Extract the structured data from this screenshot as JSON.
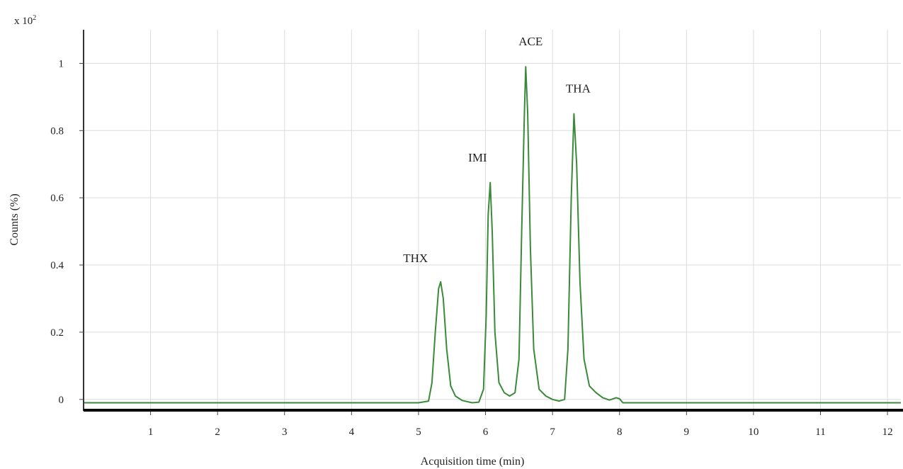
{
  "chart_data": {
    "type": "line",
    "title": "",
    "xlabel": "Acquisition time (min)",
    "ylabel": "Counts (%)",
    "y_multiplier_label": "x 10",
    "y_multiplier_exponent": "2",
    "xlim": [
      0,
      12.2
    ],
    "ylim": [
      -0.03,
      1.1
    ],
    "grid": true,
    "x_ticks": [
      1,
      2,
      3,
      4,
      5,
      6,
      7,
      8,
      9,
      10,
      11,
      12
    ],
    "y_ticks": [
      0,
      0.2,
      0.4,
      0.6,
      0.8,
      1
    ],
    "y_tick_labels": [
      "0",
      "0.2",
      "0.4",
      "0.6",
      "0.8",
      "1"
    ],
    "line_color": "#3a8a3a",
    "baseline": -0.01,
    "peaks": [
      {
        "label": "THX",
        "x": 5.32,
        "y": 0.35
      },
      {
        "label": "IMI",
        "x": 6.07,
        "y": 0.645
      },
      {
        "label": "ACE",
        "x": 6.6,
        "y": 0.99
      },
      {
        "label": "THA",
        "x": 7.32,
        "y": 0.85
      }
    ],
    "series": [
      {
        "x": [
          0.0,
          5.0,
          5.15,
          5.2,
          5.25,
          5.3,
          5.33,
          5.37,
          5.42,
          5.48,
          5.55,
          5.65,
          5.8,
          5.9,
          5.97,
          6.01,
          6.04,
          6.07,
          6.1,
          6.14,
          6.2,
          6.28,
          6.36,
          6.44,
          6.5,
          6.54,
          6.58,
          6.6,
          6.63,
          6.67,
          6.72,
          6.8,
          6.9,
          7.0,
          7.1,
          7.18,
          7.23,
          7.28,
          7.32,
          7.36,
          7.41,
          7.47,
          7.55,
          7.65,
          7.75,
          7.85,
          7.95,
          8.0,
          8.05,
          8.15,
          12.2
        ],
        "y": [
          -0.01,
          -0.01,
          -0.005,
          0.05,
          0.2,
          0.33,
          0.35,
          0.3,
          0.15,
          0.04,
          0.01,
          -0.003,
          -0.01,
          -0.008,
          0.03,
          0.25,
          0.55,
          0.645,
          0.5,
          0.2,
          0.05,
          0.02,
          0.01,
          0.02,
          0.12,
          0.5,
          0.85,
          0.99,
          0.85,
          0.45,
          0.15,
          0.03,
          0.01,
          0.0,
          -0.005,
          0.0,
          0.15,
          0.6,
          0.85,
          0.7,
          0.35,
          0.12,
          0.04,
          0.02,
          0.005,
          -0.002,
          0.005,
          0.002,
          -0.01,
          -0.01,
          -0.01
        ]
      }
    ]
  }
}
